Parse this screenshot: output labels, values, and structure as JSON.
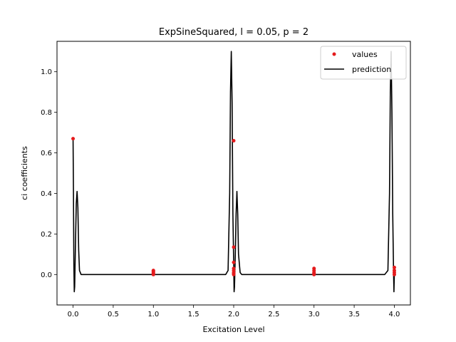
{
  "chart_data": {
    "type": "line",
    "title": "ExpSineSquared, l = 0.05, p = 2",
    "xlabel": "Excitation Level",
    "ylabel": "ci coefficients",
    "xlim": [
      -0.2,
      4.2
    ],
    "ylim": [
      -0.15,
      1.15
    ],
    "x_ticks": [
      0.0,
      0.5,
      1.0,
      1.5,
      2.0,
      2.5,
      3.0,
      3.5,
      4.0
    ],
    "x_tick_labels": [
      "0.0",
      "0.5",
      "1.0",
      "1.5",
      "2.0",
      "2.5",
      "3.0",
      "3.5",
      "4.0"
    ],
    "y_ticks": [
      0.0,
      0.2,
      0.4,
      0.6,
      0.8,
      1.0
    ],
    "y_tick_labels": [
      "0.0",
      "0.2",
      "0.4",
      "0.6",
      "0.8",
      "1.0"
    ],
    "grid": false,
    "legend_position": "top-right",
    "series": [
      {
        "name": "values",
        "kind": "scatter",
        "color": "#e41a1c",
        "points": [
          [
            0.0,
            0.67
          ],
          [
            1.0,
            0.0
          ],
          [
            1.0,
            0.005
          ],
          [
            1.0,
            0.01
          ],
          [
            1.0,
            0.015
          ],
          [
            1.0,
            0.02
          ],
          [
            2.0,
            0.66
          ],
          [
            2.0,
            0.135
          ],
          [
            2.0,
            0.06
          ],
          [
            2.0,
            0.03
          ],
          [
            2.0,
            0.02
          ],
          [
            2.0,
            0.01
          ],
          [
            2.0,
            0.005
          ],
          [
            2.0,
            0.0
          ],
          [
            3.0,
            0.0
          ],
          [
            3.0,
            0.005
          ],
          [
            3.0,
            0.01
          ],
          [
            3.0,
            0.02
          ],
          [
            3.0,
            0.03
          ],
          [
            4.0,
            0.0
          ],
          [
            4.0,
            0.01
          ],
          [
            4.0,
            0.02
          ],
          [
            4.0,
            0.035
          ]
        ]
      },
      {
        "name": "prediction",
        "kind": "line",
        "color": "#000000",
        "points": [
          [
            0.0,
            0.67
          ],
          [
            0.005,
            0.4
          ],
          [
            0.01,
            0.05
          ],
          [
            0.015,
            -0.085
          ],
          [
            0.02,
            -0.06
          ],
          [
            0.03,
            0.15
          ],
          [
            0.04,
            0.35
          ],
          [
            0.05,
            0.41
          ],
          [
            0.06,
            0.33
          ],
          [
            0.07,
            0.12
          ],
          [
            0.08,
            0.02
          ],
          [
            0.1,
            0.0
          ],
          [
            0.3,
            0.0
          ],
          [
            1.0,
            0.0
          ],
          [
            1.7,
            0.0
          ],
          [
            1.9,
            0.0
          ],
          [
            1.93,
            0.02
          ],
          [
            1.95,
            0.4
          ],
          [
            1.96,
            0.9
          ],
          [
            1.97,
            1.1
          ],
          [
            1.98,
            0.85
          ],
          [
            1.99,
            0.3
          ],
          [
            2.0,
            0.05
          ],
          [
            2.005,
            -0.085
          ],
          [
            2.01,
            -0.06
          ],
          [
            2.02,
            0.1
          ],
          [
            2.03,
            0.3
          ],
          [
            2.04,
            0.41
          ],
          [
            2.05,
            0.3
          ],
          [
            2.06,
            0.1
          ],
          [
            2.08,
            0.01
          ],
          [
            2.1,
            0.0
          ],
          [
            3.0,
            0.0
          ],
          [
            3.88,
            0.0
          ],
          [
            3.92,
            0.02
          ],
          [
            3.94,
            0.4
          ],
          [
            3.95,
            0.9
          ],
          [
            3.96,
            1.1
          ],
          [
            3.97,
            0.8
          ],
          [
            3.98,
            0.3
          ],
          [
            3.99,
            0.02
          ],
          [
            3.995,
            -0.085
          ],
          [
            4.0,
            0.0
          ],
          [
            4.005,
            0.0
          ]
        ]
      }
    ]
  }
}
